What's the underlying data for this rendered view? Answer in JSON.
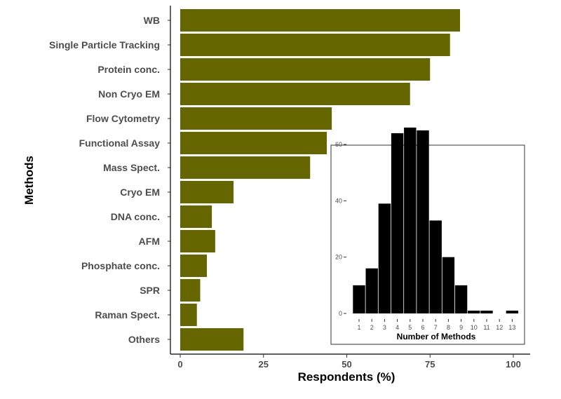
{
  "chart_data": [
    {
      "type": "bar",
      "orientation": "horizontal",
      "categories": [
        "WB",
        "Single Particle Tracking",
        "Protein conc.",
        "Non Cryo EM",
        "Flow Cytometry",
        "Functional Assay",
        "Mass Spect.",
        "Cryo EM",
        "DNA conc.",
        "AFM",
        "Phosphate conc.",
        "SPR",
        "Raman Spect.",
        "Others"
      ],
      "values": [
        84,
        81,
        75,
        69,
        45.5,
        44,
        39,
        16,
        9.5,
        10.5,
        8,
        6,
        5,
        19
      ],
      "xlabel": "Respondents (%)",
      "ylabel": "Methods",
      "xlim": [
        0,
        100
      ],
      "xticks": [
        0,
        25,
        50,
        75,
        100
      ],
      "color": "#666600",
      "grid": false
    },
    {
      "type": "bar",
      "role": "inset histogram",
      "categories": [
        "1",
        "2",
        "3",
        "4",
        "5",
        "6",
        "7",
        "8",
        "9",
        "10",
        "11",
        "12",
        "13"
      ],
      "values": [
        10,
        16,
        39,
        64,
        66,
        65,
        33,
        20,
        10,
        1,
        1,
        0,
        1
      ],
      "xlabel": "Number of Methods",
      "ylabel": "",
      "ylim": [
        0,
        76
      ],
      "yticks": [
        0,
        20,
        40,
        60
      ],
      "color": "#000000",
      "grid": false
    }
  ]
}
